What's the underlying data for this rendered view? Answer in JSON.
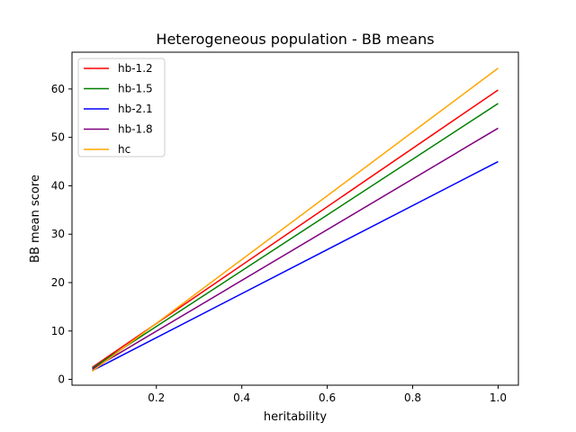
{
  "chart_data": {
    "type": "line",
    "title": "Heterogeneous population - BB means",
    "xlabel": "heritability",
    "ylabel": "BB mean score",
    "xlim": [
      0.0025,
      1.0475
    ],
    "ylim": [
      -1.2,
      67.6
    ],
    "xticks": [
      0.2,
      0.4,
      0.6,
      0.8,
      1.0
    ],
    "xtick_labels": [
      "0.2",
      "0.4",
      "0.6",
      "0.8",
      "1.0"
    ],
    "yticks": [
      0,
      10,
      20,
      30,
      40,
      50,
      60
    ],
    "ytick_labels": [
      "0",
      "10",
      "20",
      "30",
      "40",
      "50",
      "60"
    ],
    "grid": false,
    "legend_position": "upper-left",
    "x": [
      0.05,
      1.0
    ],
    "series": [
      {
        "name": "hb-1.2",
        "color": "#ff0000",
        "values": [
          2.5,
          59.8
        ]
      },
      {
        "name": "hb-1.5",
        "color": "#008000",
        "values": [
          2.3,
          57.0
        ]
      },
      {
        "name": "hb-2.1",
        "color": "#0000ff",
        "values": [
          1.8,
          45.0
        ]
      },
      {
        "name": "hb-1.8",
        "color": "#800080",
        "values": [
          2.1,
          51.9
        ]
      },
      {
        "name": "hc",
        "color": "#ffa500",
        "values": [
          1.7,
          64.3
        ]
      }
    ]
  }
}
